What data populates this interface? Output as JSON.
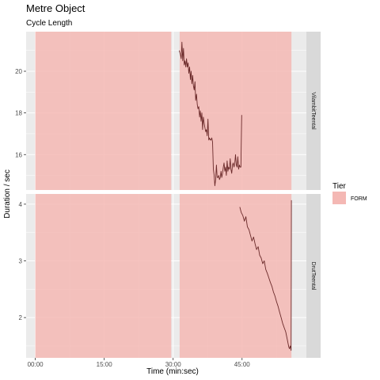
{
  "chart_data": {
    "type": "line",
    "title": "Metre Object",
    "subtitle": "Cycle Length",
    "xlabel": "Time (min:sec)",
    "ylabel": "Duration / sec",
    "x_unit": "seconds",
    "xlim": [
      -120,
      3540
    ],
    "x_ticks": [
      {
        "value": 0,
        "label": "00:00"
      },
      {
        "value": 900,
        "label": "15:00"
      },
      {
        "value": 1800,
        "label": "30:00"
      },
      {
        "value": 2700,
        "label": "45:00"
      }
    ],
    "grid": true,
    "legend": {
      "title": "Tier",
      "position": "right",
      "entries": [
        {
          "label": "FORM",
          "color": "#f4b8b4"
        }
      ]
    },
    "colors": {
      "panel_bg": "#ebebeb",
      "grid": "#ffffff",
      "strip_bg": "#d9d9d9",
      "form_fill": "#f4b8b4",
      "line": "#6b2a2a"
    },
    "panels": [
      {
        "strip": "VilambitTeental",
        "ylim": [
          14.3,
          21.9
        ],
        "y_ticks": [
          16,
          18,
          20
        ],
        "form_regions": [
          [
            0,
            1775
          ],
          [
            1885,
            3345
          ]
        ],
        "series": [
          {
            "name": "VilambitTeental",
            "x": [
              1880,
              1895,
              1905,
              1915,
              1925,
              1935,
              1945,
              1955,
              1965,
              1975,
              1985,
              1995,
              2005,
              2015,
              2025,
              2035,
              2045,
              2055,
              2065,
              2075,
              2085,
              2095,
              2105,
              2115,
              2125,
              2135,
              2145,
              2155,
              2165,
              2175,
              2185,
              2195,
              2205,
              2215,
              2225,
              2235,
              2245,
              2255,
              2265,
              2275,
              2285,
              2295,
              2305,
              2315,
              2325,
              2335,
              2345,
              2355,
              2365,
              2375,
              2385,
              2395,
              2405,
              2415,
              2425,
              2435,
              2445,
              2455,
              2465,
              2475,
              2485,
              2495,
              2505,
              2515,
              2525,
              2535,
              2545,
              2555,
              2565,
              2575,
              2585,
              2595,
              2605,
              2615,
              2625,
              2635,
              2645,
              2655,
              2665,
              2675,
              2685,
              2695
            ],
            "y": [
              21.0,
              20.8,
              20.6,
              21.4,
              20.5,
              21.1,
              20.3,
              20.5,
              20.2,
              20.6,
              20.2,
              20.4,
              19.9,
              20.2,
              19.6,
              20.0,
              19.4,
              19.8,
              19.3,
              19.1,
              19.5,
              18.6,
              18.9,
              18.4,
              18.2,
              18.3,
              17.8,
              18.1,
              17.6,
              18.0,
              17.2,
              17.8,
              17.5,
              17.3,
              17.1,
              17.2,
              16.9,
              17.7,
              16.7,
              16.8,
              16.7,
              16.7,
              16.8,
              16.6,
              15.3,
              15.0,
              14.5,
              14.8,
              15.5,
              14.9,
              14.9,
              15.0,
              14.8,
              14.9,
              15.2,
              14.9,
              15.1,
              15.4,
              15.6,
              15.2,
              15.4,
              15.0,
              15.7,
              15.2,
              15.4,
              15.3,
              15.8,
              15.3,
              15.1,
              15.5,
              15.6,
              15.4,
              15.6,
              16.0,
              15.5,
              15.4,
              15.9,
              15.3,
              15.5,
              15.4,
              15.4,
              17.9
            ]
          }
        ]
      },
      {
        "strip": "DrutTeental",
        "ylim": [
          1.29,
          4.18
        ],
        "y_ticks": [
          2,
          3,
          4
        ],
        "form_regions": [
          [
            0,
            1775
          ],
          [
            1885,
            3345
          ]
        ],
        "series": [
          {
            "name": "DrutTeental",
            "x": [
              2670,
              2690,
              2710,
              2730,
              2750,
              2770,
              2790,
              2810,
              2830,
              2850,
              2870,
              2890,
              2910,
              2930,
              2950,
              2970,
              2990,
              3010,
              3030,
              3050,
              3070,
              3090,
              3110,
              3130,
              3150,
              3170,
              3190,
              3210,
              3230,
              3250,
              3270,
              3290,
              3300,
              3310,
              3320,
              3330,
              3340,
              3345
            ],
            "y": [
              3.95,
              3.85,
              3.8,
              3.7,
              3.78,
              3.6,
              3.55,
              3.45,
              3.35,
              3.42,
              3.3,
              3.2,
              3.25,
              3.1,
              3.05,
              2.95,
              3.0,
              2.85,
              2.78,
              2.7,
              2.62,
              2.55,
              2.45,
              2.38,
              2.28,
              2.2,
              2.1,
              2.0,
              1.9,
              1.82,
              1.75,
              1.62,
              1.55,
              1.48,
              1.45,
              1.5,
              1.42,
              4.07
            ]
          }
        ]
      }
    ]
  }
}
